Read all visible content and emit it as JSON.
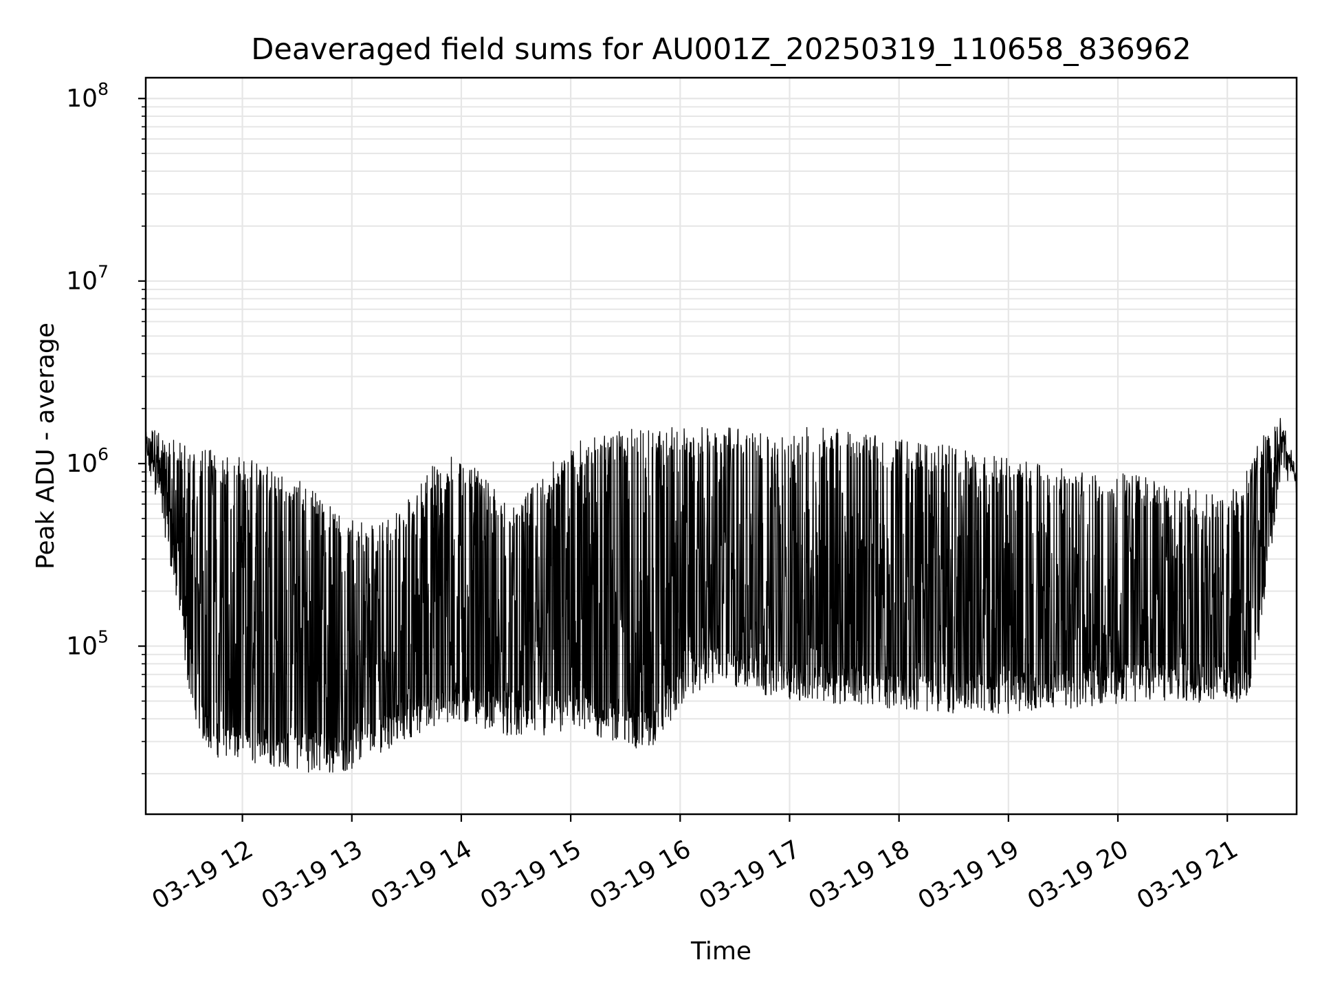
{
  "chart_data": {
    "type": "line",
    "title": "Deaveraged field sums for AU001Z_20250319_110658_836962",
    "xlabel": "Time",
    "ylabel": "Peak ADU - average",
    "yscale": "log",
    "ylim": [
      12000,
      130000000
    ],
    "xlim": [
      "2025-03-19 11:07",
      "2025-03-19 21:38"
    ],
    "grid": true,
    "line_color": "#000000",
    "grid_color": "#e6e6e6",
    "x_ticks": [
      {
        "time": "2025-03-19 12:00",
        "label": "03-19 12"
      },
      {
        "time": "2025-03-19 13:00",
        "label": "03-19 13"
      },
      {
        "time": "2025-03-19 14:00",
        "label": "03-19 14"
      },
      {
        "time": "2025-03-19 15:00",
        "label": "03-19 15"
      },
      {
        "time": "2025-03-19 16:00",
        "label": "03-19 16"
      },
      {
        "time": "2025-03-19 17:00",
        "label": "03-19 17"
      },
      {
        "time": "2025-03-19 18:00",
        "label": "03-19 18"
      },
      {
        "time": "2025-03-19 19:00",
        "label": "03-19 19"
      },
      {
        "time": "2025-03-19 20:00",
        "label": "03-19 20"
      },
      {
        "time": "2025-03-19 21:00",
        "label": "03-19 21"
      }
    ],
    "y_ticks": [
      {
        "value": 100000,
        "base": "10",
        "exp": "5"
      },
      {
        "value": 1000000,
        "base": "10",
        "exp": "6"
      },
      {
        "value": 10000000,
        "base": "10",
        "exp": "7"
      },
      {
        "value": 100000000,
        "base": "10",
        "exp": "8"
      }
    ],
    "series": [
      {
        "x": [
          "2025-03-19 11:07",
          "2025-03-19 11:15",
          "2025-03-19 11:22",
          "2025-03-19 11:30",
          "2025-03-19 11:37",
          "2025-03-19 11:45",
          "2025-03-19 11:52",
          "2025-03-19 12:00",
          "2025-03-19 12:15",
          "2025-03-19 12:30",
          "2025-03-19 12:45",
          "2025-03-19 13:00",
          "2025-03-19 13:15",
          "2025-03-19 13:30",
          "2025-03-19 13:45",
          "2025-03-19 14:00",
          "2025-03-19 14:15",
          "2025-03-19 14:30",
          "2025-03-19 14:45",
          "2025-03-19 15:00",
          "2025-03-19 15:15",
          "2025-03-19 15:30",
          "2025-03-19 15:45",
          "2025-03-19 16:00",
          "2025-03-19 16:15",
          "2025-03-19 16:30",
          "2025-03-19 16:45",
          "2025-03-19 17:00",
          "2025-03-19 17:15",
          "2025-03-19 17:30",
          "2025-03-19 17:45",
          "2025-03-19 18:00",
          "2025-03-19 18:15",
          "2025-03-19 18:30",
          "2025-03-19 18:45",
          "2025-03-19 19:00",
          "2025-03-19 19:15",
          "2025-03-19 19:30",
          "2025-03-19 19:45",
          "2025-03-19 20:00",
          "2025-03-19 20:15",
          "2025-03-19 20:30",
          "2025-03-19 20:45",
          "2025-03-19 21:00",
          "2025-03-19 21:07",
          "2025-03-19 21:15",
          "2025-03-19 21:22",
          "2025-03-19 21:30",
          "2025-03-19 21:38"
        ],
        "baseline": [
          1100000,
          700000,
          300000,
          80000,
          40000,
          32000,
          30000,
          30000,
          28000,
          27000,
          25000,
          27000,
          33000,
          40000,
          45000,
          48000,
          45000,
          40000,
          40000,
          42000,
          40000,
          36000,
          34000,
          60000,
          80000,
          75000,
          70000,
          65000,
          62000,
          62000,
          60000,
          58000,
          56000,
          55000,
          55000,
          55000,
          56000,
          58000,
          60000,
          62000,
          63000,
          63000,
          62000,
          62000,
          60000,
          70000,
          300000,
          1200000,
          800000
        ],
        "upper": [
          1500000,
          1300000,
          1200000,
          1150000,
          1100000,
          1050000,
          1000000,
          950000,
          900000,
          750000,
          600000,
          450000,
          420000,
          550000,
          900000,
          1000000,
          700000,
          500000,
          800000,
          1150000,
          1300000,
          1400000,
          1400000,
          1400000,
          1400000,
          1400000,
          1400000,
          1400000,
          1400000,
          1400000,
          1300000,
          1200000,
          1150000,
          1100000,
          1000000,
          950000,
          900000,
          850000,
          800000,
          800000,
          750000,
          700000,
          650000,
          600000,
          700000,
          1100000,
          1500000,
          1700000,
          900000
        ]
      }
    ]
  }
}
